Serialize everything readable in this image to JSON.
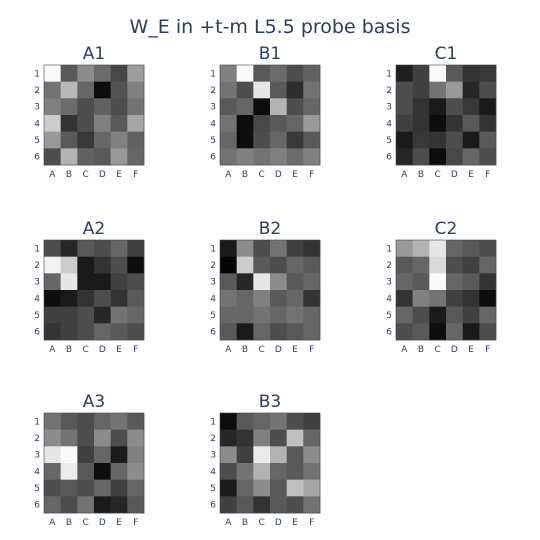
{
  "chart_data": {
    "type": "heatmap",
    "title": "W_E in +t-m L5.5 probe basis",
    "x_tick_labels": [
      "A",
      "B",
      "C",
      "D",
      "E",
      "F"
    ],
    "y_tick_labels": [
      "1",
      "2",
      "3",
      "4",
      "5",
      "6"
    ],
    "colorscale": "grayscale (black = low, white = high)",
    "grid": false,
    "panels": [
      {
        "name": "A1",
        "z": [
          [
            0.98,
            0.35,
            0.55,
            0.42,
            0.28,
            0.62
          ],
          [
            0.45,
            0.72,
            0.4,
            0.05,
            0.32,
            0.5
          ],
          [
            0.5,
            0.42,
            0.3,
            0.38,
            0.3,
            0.45
          ],
          [
            0.8,
            0.2,
            0.3,
            0.5,
            0.35,
            0.65
          ],
          [
            0.6,
            0.35,
            0.22,
            0.4,
            0.5,
            0.38
          ],
          [
            0.3,
            0.7,
            0.38,
            0.35,
            0.6,
            0.4
          ]
        ]
      },
      {
        "name": "B1",
        "z": [
          [
            0.5,
            0.98,
            0.35,
            0.42,
            0.3,
            0.38
          ],
          [
            0.45,
            0.3,
            0.9,
            0.35,
            0.18,
            0.45
          ],
          [
            0.35,
            0.4,
            0.05,
            0.7,
            0.3,
            0.4
          ],
          [
            0.45,
            0.05,
            0.28,
            0.35,
            0.4,
            0.6
          ],
          [
            0.4,
            0.05,
            0.3,
            0.4,
            0.22,
            0.35
          ],
          [
            0.45,
            0.5,
            0.45,
            0.5,
            0.42,
            0.5
          ]
        ]
      },
      {
        "name": "C1",
        "z": [
          [
            0.12,
            0.25,
            0.98,
            0.35,
            0.2,
            0.22
          ],
          [
            0.3,
            0.25,
            0.45,
            0.6,
            0.15,
            0.3
          ],
          [
            0.3,
            0.2,
            0.1,
            0.3,
            0.22,
            0.1
          ],
          [
            0.25,
            0.2,
            0.05,
            0.2,
            0.35,
            0.2
          ],
          [
            0.1,
            0.22,
            0.2,
            0.3,
            0.1,
            0.35
          ],
          [
            0.15,
            0.3,
            0.05,
            0.28,
            0.4,
            0.3
          ]
        ]
      },
      {
        "name": "A2",
        "z": [
          [
            0.3,
            0.15,
            0.35,
            0.3,
            0.4,
            0.25
          ],
          [
            0.95,
            0.8,
            0.1,
            0.2,
            0.3,
            0.05
          ],
          [
            0.4,
            0.9,
            0.1,
            0.1,
            0.25,
            0.3
          ],
          [
            0.05,
            0.1,
            0.2,
            0.3,
            0.2,
            0.35
          ],
          [
            0.25,
            0.25,
            0.3,
            0.15,
            0.45,
            0.4
          ],
          [
            0.2,
            0.25,
            0.3,
            0.4,
            0.35,
            0.3
          ]
        ]
      },
      {
        "name": "B2",
        "z": [
          [
            0.1,
            0.55,
            0.3,
            0.45,
            0.25,
            0.2
          ],
          [
            0.02,
            0.8,
            0.35,
            0.3,
            0.4,
            0.35
          ],
          [
            0.35,
            0.15,
            0.9,
            0.55,
            0.35,
            0.4
          ],
          [
            0.45,
            0.4,
            0.5,
            0.35,
            0.4,
            0.2
          ],
          [
            0.4,
            0.4,
            0.45,
            0.4,
            0.45,
            0.4
          ],
          [
            0.35,
            0.1,
            0.4,
            0.3,
            0.35,
            0.4
          ]
        ]
      },
      {
        "name": "C2",
        "z": [
          [
            0.6,
            0.7,
            0.9,
            0.4,
            0.35,
            0.3
          ],
          [
            0.35,
            0.4,
            0.85,
            0.3,
            0.25,
            0.4
          ],
          [
            0.4,
            0.35,
            0.98,
            0.4,
            0.35,
            0.2
          ],
          [
            0.2,
            0.5,
            0.45,
            0.25,
            0.2,
            0.05
          ],
          [
            0.4,
            0.3,
            0.1,
            0.35,
            0.25,
            0.4
          ],
          [
            0.3,
            0.35,
            0.05,
            0.4,
            0.1,
            0.3
          ]
        ]
      },
      {
        "name": "A3",
        "z": [
          [
            0.45,
            0.35,
            0.3,
            0.4,
            0.45,
            0.35
          ],
          [
            0.55,
            0.45,
            0.3,
            0.55,
            0.3,
            0.55
          ],
          [
            0.9,
            0.98,
            0.25,
            0.4,
            0.1,
            0.5
          ],
          [
            0.4,
            0.92,
            0.35,
            0.05,
            0.4,
            0.55
          ],
          [
            0.3,
            0.35,
            0.3,
            0.4,
            0.25,
            0.4
          ],
          [
            0.4,
            0.3,
            0.45,
            0.1,
            0.15,
            0.35
          ]
        ]
      },
      {
        "name": "B3",
        "z": [
          [
            0.05,
            0.35,
            0.4,
            0.45,
            0.3,
            0.25
          ],
          [
            0.15,
            0.2,
            0.5,
            0.3,
            0.75,
            0.4
          ],
          [
            0.55,
            0.25,
            0.92,
            0.7,
            0.35,
            0.55
          ],
          [
            0.3,
            0.45,
            0.7,
            0.4,
            0.35,
            0.45
          ],
          [
            0.1,
            0.4,
            0.55,
            0.35,
            0.75,
            0.65
          ],
          [
            0.25,
            0.35,
            0.2,
            0.35,
            0.3,
            0.45
          ]
        ]
      }
    ]
  }
}
